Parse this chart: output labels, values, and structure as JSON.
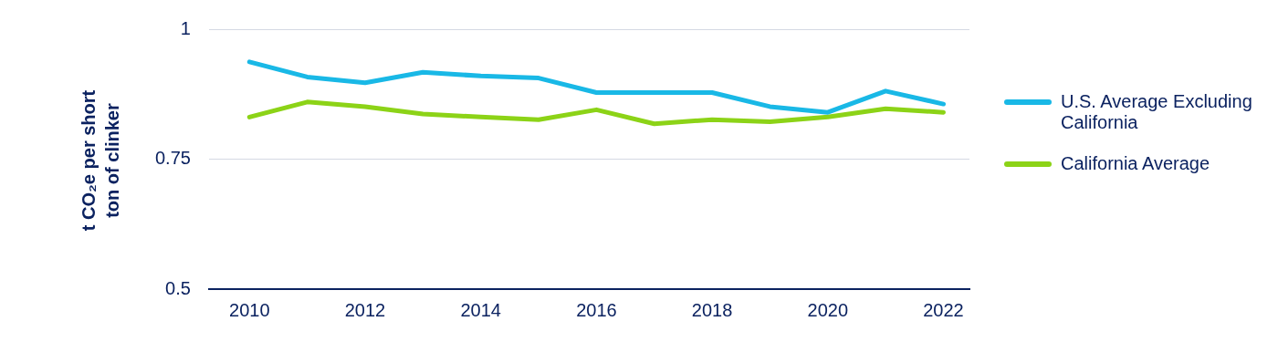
{
  "chart_data": {
    "type": "line",
    "ylabel": "t CO₂e per short ton of clinker",
    "x": [
      2010,
      2011,
      2012,
      2013,
      2014,
      2015,
      2016,
      2017,
      2018,
      2019,
      2020,
      2021,
      2022
    ],
    "series": [
      {
        "name": "U.S. Average Excluding California",
        "color": "#19b8e6",
        "values": [
          0.937,
          0.908,
          0.897,
          0.917,
          0.91,
          0.906,
          0.878,
          0.878,
          0.878,
          0.851,
          0.84,
          0.881,
          0.856
        ]
      },
      {
        "name": "California Average",
        "color": "#8cd317",
        "values": [
          0.831,
          0.86,
          0.851,
          0.837,
          0.831,
          0.826,
          0.845,
          0.818,
          0.826,
          0.822,
          0.831,
          0.847,
          0.84
        ]
      }
    ],
    "xlim": [
      2009.3,
      2022.45
    ],
    "xticks": [
      2010,
      2012,
      2014,
      2016,
      2018,
      2020,
      2022
    ],
    "ylim": [
      0.5,
      1
    ],
    "yticks": [
      0.5,
      0.75,
      1
    ],
    "grid": "y",
    "legend": "right",
    "marker": "none",
    "line_style": "solid"
  }
}
